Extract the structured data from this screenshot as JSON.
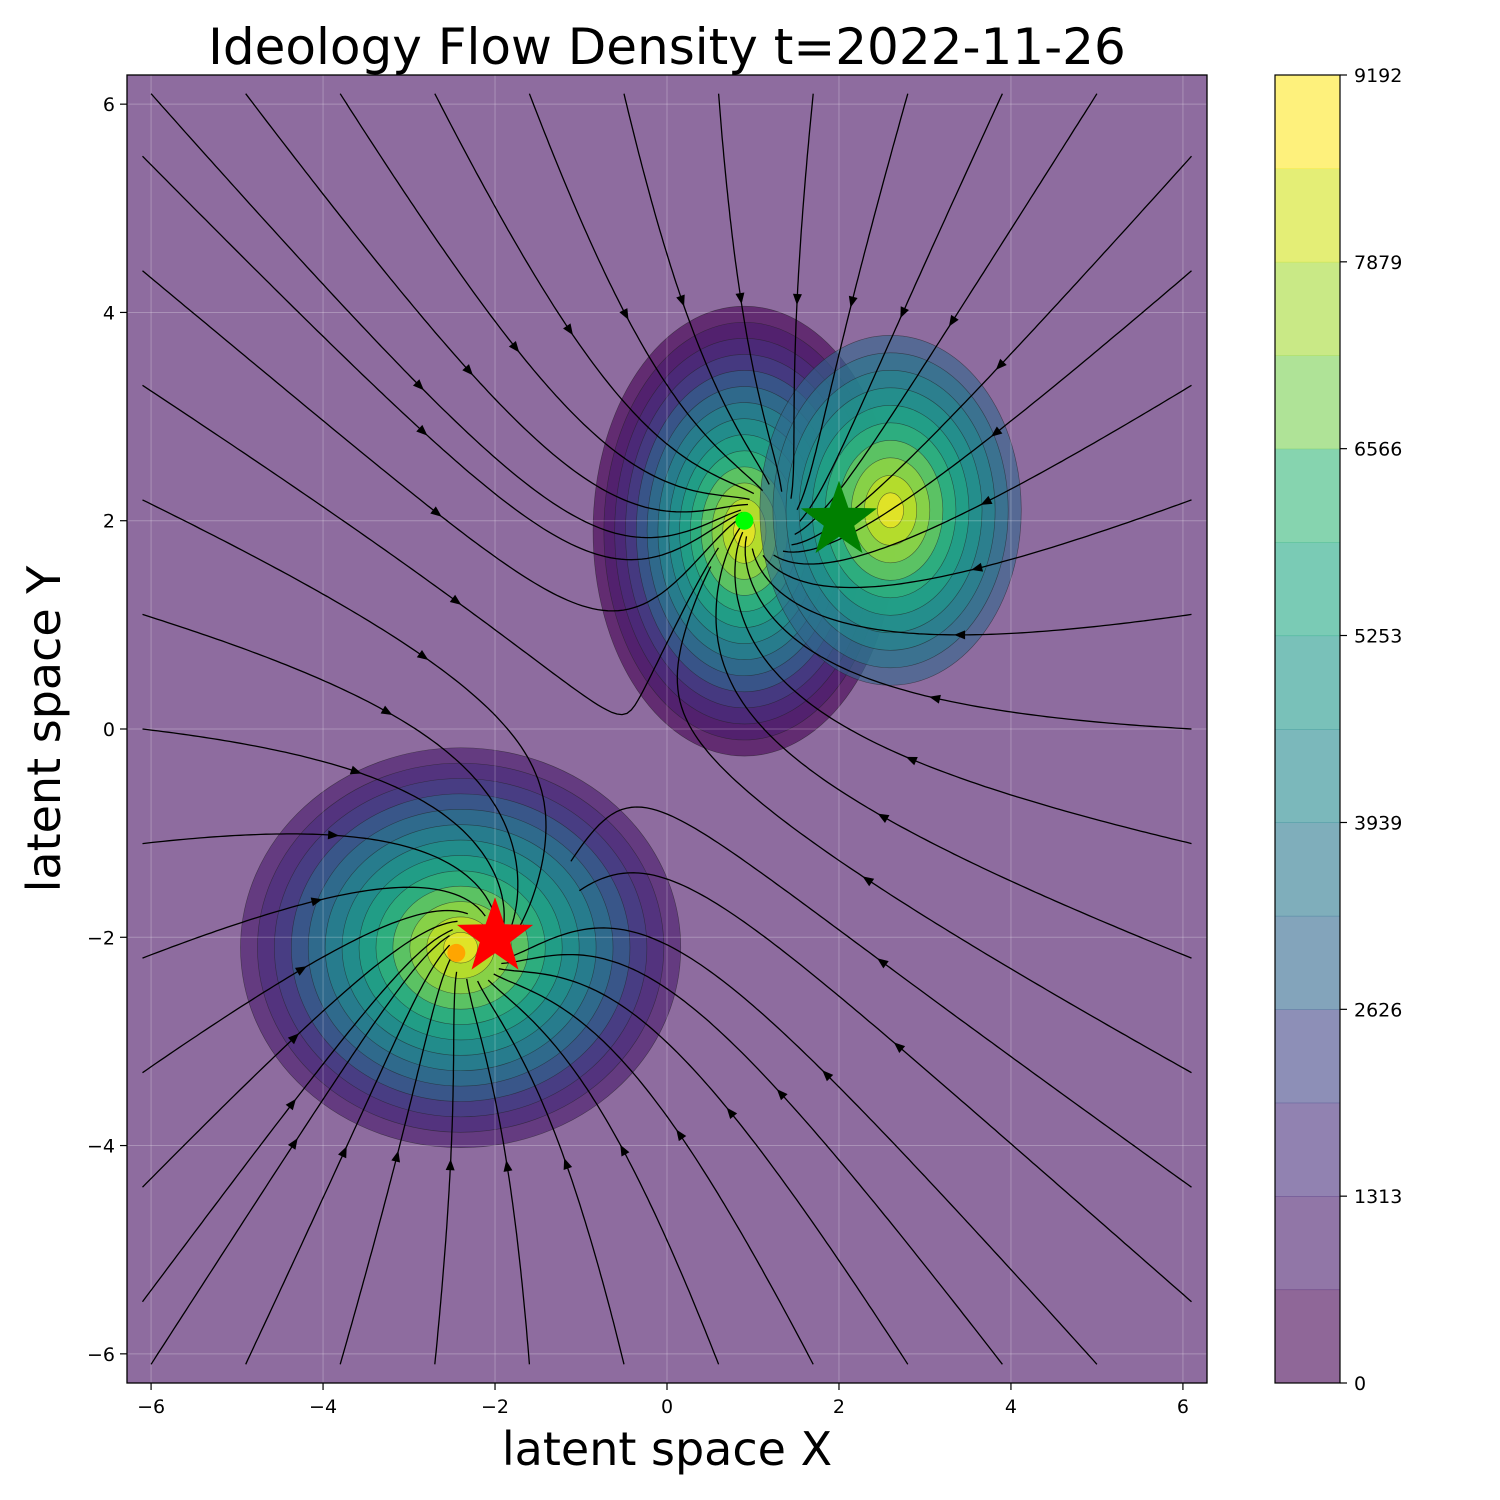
{
  "chart_data": {
    "type": "contour",
    "title": "Ideology Flow Density t=2022-11-26",
    "xlabel": "latent space X",
    "ylabel": "latent space Y",
    "xlim": [
      -6.28,
      6.28
    ],
    "ylim": [
      -6.28,
      6.28
    ],
    "x_ticks": [
      -6,
      -4,
      -2,
      0,
      2,
      4,
      6
    ],
    "y_ticks": [
      -6,
      -4,
      -2,
      0,
      2,
      4,
      6
    ],
    "x_tick_labels": [
      "−6",
      "−4",
      "−2",
      "0",
      "2",
      "4",
      "6"
    ],
    "y_tick_labels": [
      "−6",
      "−4",
      "−2",
      "0",
      "2",
      "4",
      "6"
    ],
    "grid": true,
    "colormap": "viridis",
    "colorbar": {
      "min": 0,
      "max": 9192,
      "tick_values": [
        0,
        1313,
        2626,
        3939,
        5253,
        6566,
        7879,
        9192
      ],
      "tick_labels": [
        "0",
        "1313",
        "2626",
        "3939",
        "5253",
        "6566",
        "7879",
        "9192"
      ],
      "levels": 14
    },
    "density_peaks": [
      {
        "x": 0.9,
        "y": 1.9,
        "value": 9192
      },
      {
        "x": 2.6,
        "y": 2.1,
        "value": 6300
      },
      {
        "x": -2.4,
        "y": -2.1,
        "value": 8000
      }
    ],
    "markers": [
      {
        "kind": "star",
        "x": 2.0,
        "y": 2.0,
        "color": "#008000"
      },
      {
        "kind": "star",
        "x": -2.0,
        "y": -2.0,
        "color": "#ff0000"
      },
      {
        "kind": "dot",
        "x": 0.9,
        "y": 2.0,
        "color": "#00ff00"
      },
      {
        "kind": "dot",
        "x": -2.45,
        "y": -2.15,
        "color": "#ffa500"
      }
    ],
    "streamlines": "vector field flowing toward the two density clusters"
  }
}
